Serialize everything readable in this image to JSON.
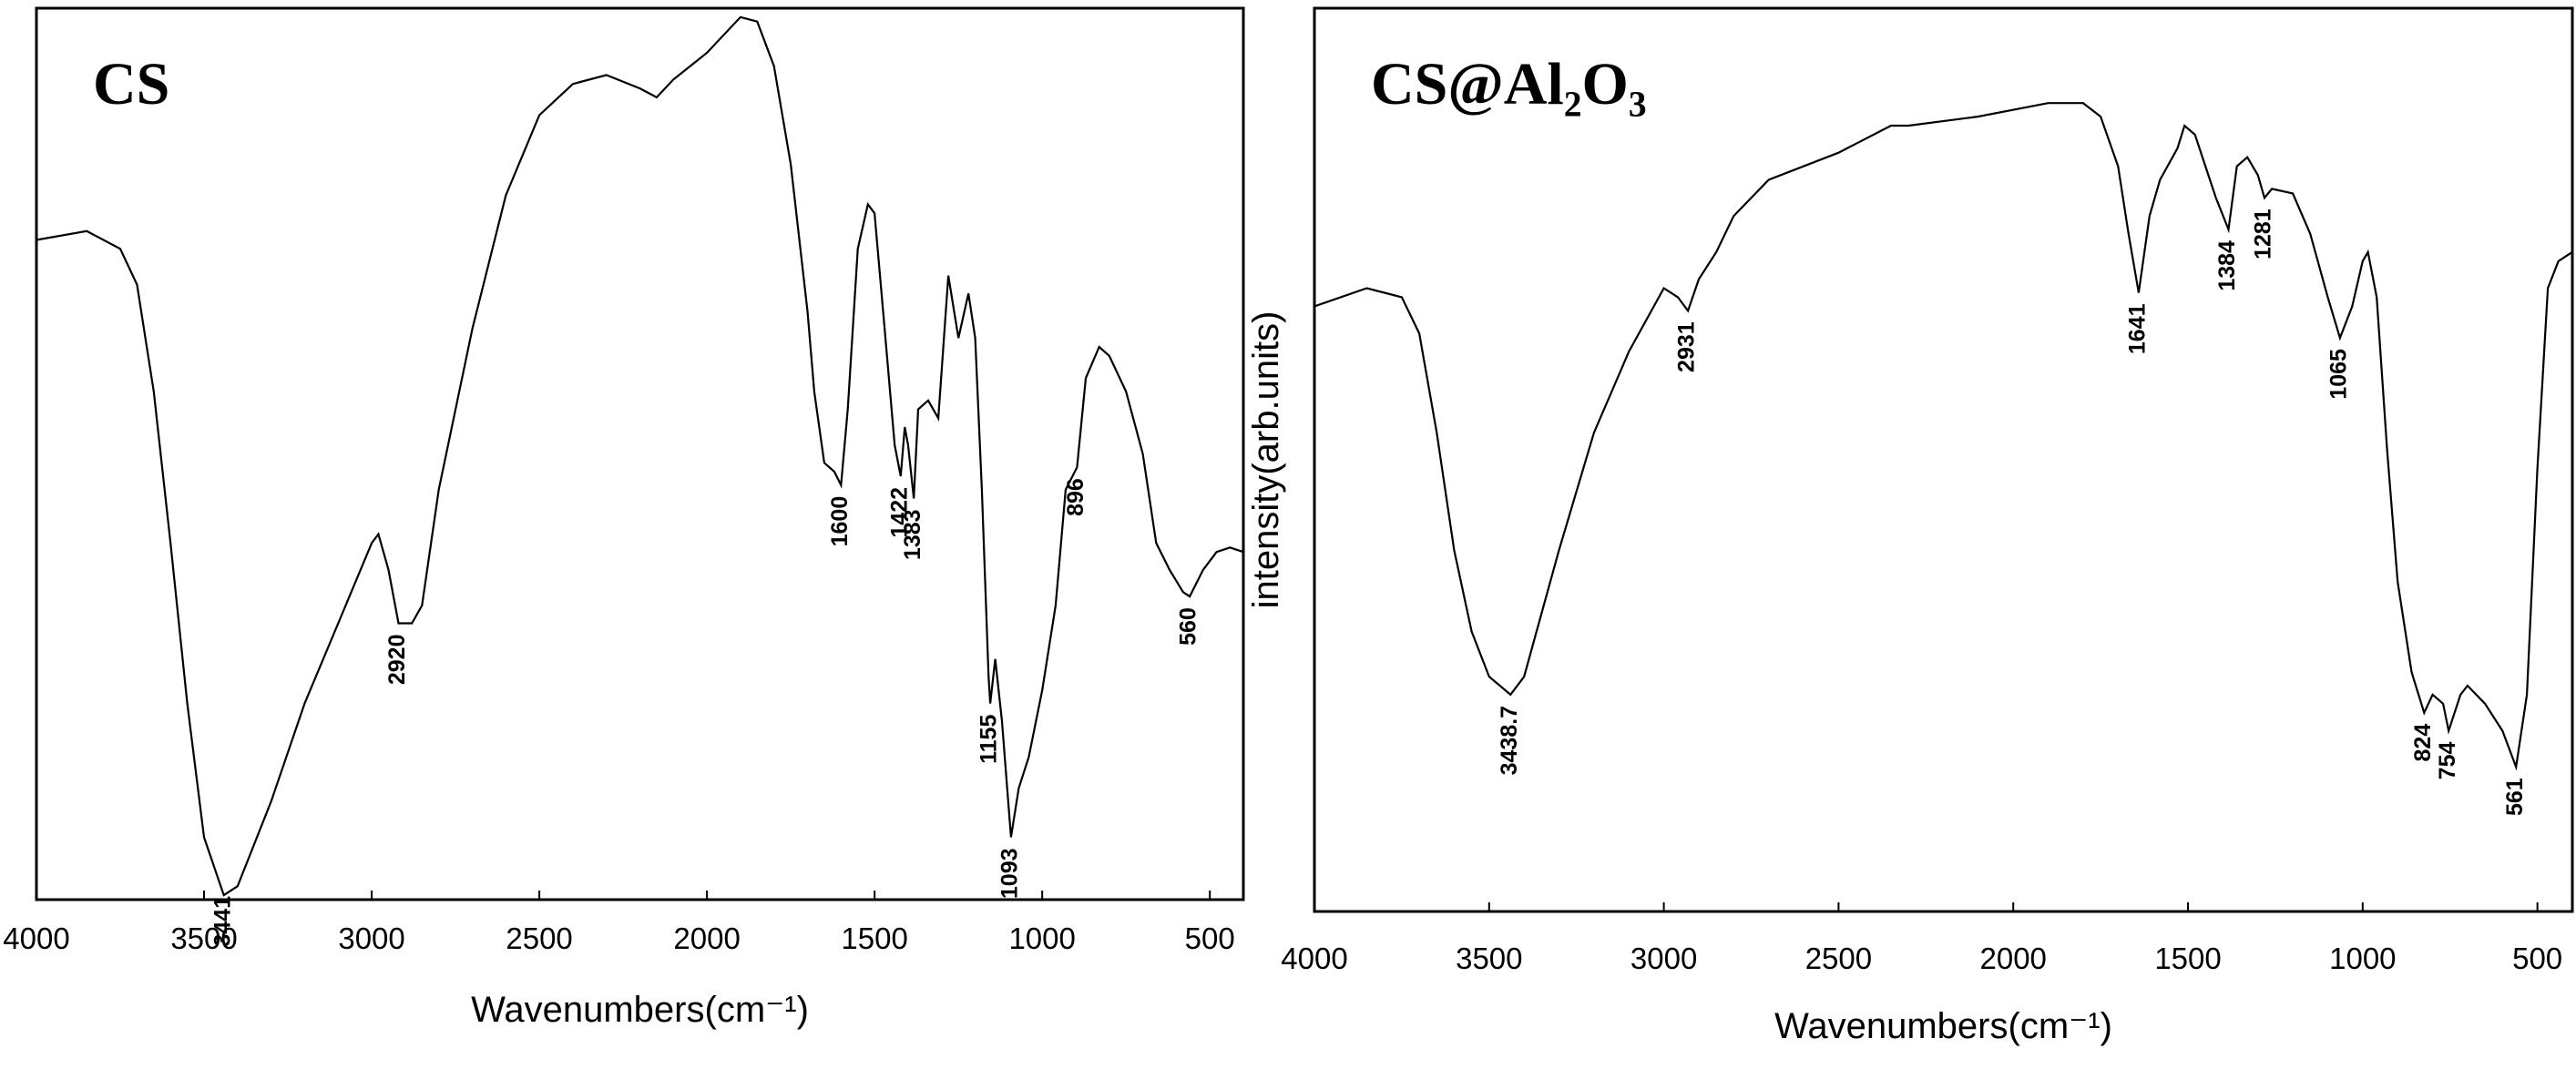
{
  "chart_data": [
    {
      "type": "line",
      "title": "CS",
      "x_label": "Wavenumbers(cm⁻¹)",
      "color": "#000000",
      "xlim": [
        4000,
        400
      ],
      "ylim": [
        0,
        100
      ],
      "xticks": [
        4000,
        3500,
        3000,
        2500,
        2000,
        1500,
        1000,
        500
      ],
      "x": [
        4000,
        3850,
        3750,
        3700,
        3650,
        3600,
        3550,
        3500,
        3441,
        3400,
        3300,
        3200,
        3100,
        3000,
        2980,
        2950,
        2920,
        2880,
        2850,
        2800,
        2700,
        2600,
        2500,
        2400,
        2300,
        2200,
        2150,
        2100,
        2000,
        1900,
        1850,
        1800,
        1750,
        1700,
        1680,
        1650,
        1620,
        1600,
        1580,
        1550,
        1520,
        1500,
        1470,
        1440,
        1422,
        1410,
        1400,
        1383,
        1370,
        1340,
        1310,
        1280,
        1250,
        1220,
        1200,
        1180,
        1160,
        1155,
        1140,
        1120,
        1093,
        1070,
        1040,
        1000,
        960,
        930,
        896,
        870,
        830,
        800,
        750,
        700,
        660,
        620,
        580,
        560,
        520,
        480,
        440,
        400
      ],
      "values": [
        74,
        75,
        73,
        69,
        57,
        40,
        22,
        7,
        0.5,
        1.5,
        11,
        22,
        31,
        40,
        41,
        37,
        31,
        31,
        33,
        46,
        64,
        79,
        88,
        91.5,
        92.5,
        91,
        90,
        92,
        95,
        99,
        98.5,
        93.5,
        82.5,
        66,
        57,
        49,
        48,
        46.5,
        55,
        73,
        78,
        77,
        64,
        51,
        47.5,
        53,
        51,
        45,
        55,
        56,
        54,
        70,
        63,
        68,
        63,
        46,
        25,
        22,
        27,
        20,
        7,
        12.5,
        16,
        23.5,
        33,
        46,
        48.5,
        58.5,
        62,
        61,
        57,
        50,
        40,
        37,
        34.5,
        34,
        37,
        39,
        39.5,
        39
      ],
      "peaks": [
        3441,
        2920,
        1600,
        1422,
        1383,
        1155,
        1093,
        896,
        560
      ]
    },
    {
      "type": "line",
      "title": "CS@Al₂O₃",
      "x_label": "Wavenumbers(cm⁻¹)",
      "y_label": "intensity(arb.units)",
      "color": "#000000",
      "xlim": [
        4000,
        400
      ],
      "ylim": [
        0,
        100
      ],
      "xticks": [
        4000,
        3500,
        3000,
        2500,
        2000,
        1500,
        1000,
        500
      ],
      "x": [
        4000,
        3850,
        3750,
        3700,
        3650,
        3600,
        3550,
        3500,
        3438.7,
        3400,
        3300,
        3200,
        3100,
        3000,
        2960,
        2931,
        2900,
        2850,
        2800,
        2700,
        2500,
        2350,
        2300,
        2100,
        1900,
        1800,
        1750,
        1700,
        1670,
        1641,
        1610,
        1580,
        1530,
        1510,
        1480,
        1450,
        1420,
        1384,
        1360,
        1330,
        1300,
        1281,
        1260,
        1200,
        1150,
        1100,
        1065,
        1030,
        1000,
        985,
        960,
        930,
        900,
        860,
        824,
        800,
        770,
        754,
        720,
        700,
        650,
        600,
        561,
        530,
        500,
        470,
        440,
        400
      ],
      "values": [
        67,
        69,
        68,
        64,
        53,
        40,
        31,
        26,
        24,
        26,
        40,
        53,
        62,
        69,
        68,
        66.5,
        70,
        73,
        77,
        81,
        84,
        87,
        87,
        88,
        89.5,
        89.5,
        88,
        82.5,
        75,
        68.5,
        77,
        81,
        84.5,
        87,
        86,
        82.5,
        79,
        75.5,
        82.5,
        83.5,
        81.5,
        79,
        80,
        79.5,
        75,
        68,
        63.5,
        67,
        72,
        73,
        68,
        51,
        36.5,
        26.5,
        22,
        24,
        23,
        20,
        24,
        25,
        23,
        20,
        16,
        24,
        49,
        69,
        72,
        73
      ],
      "peaks": [
        3438.7,
        2931,
        1641,
        1384,
        1281,
        1065,
        824,
        754,
        561
      ]
    }
  ]
}
